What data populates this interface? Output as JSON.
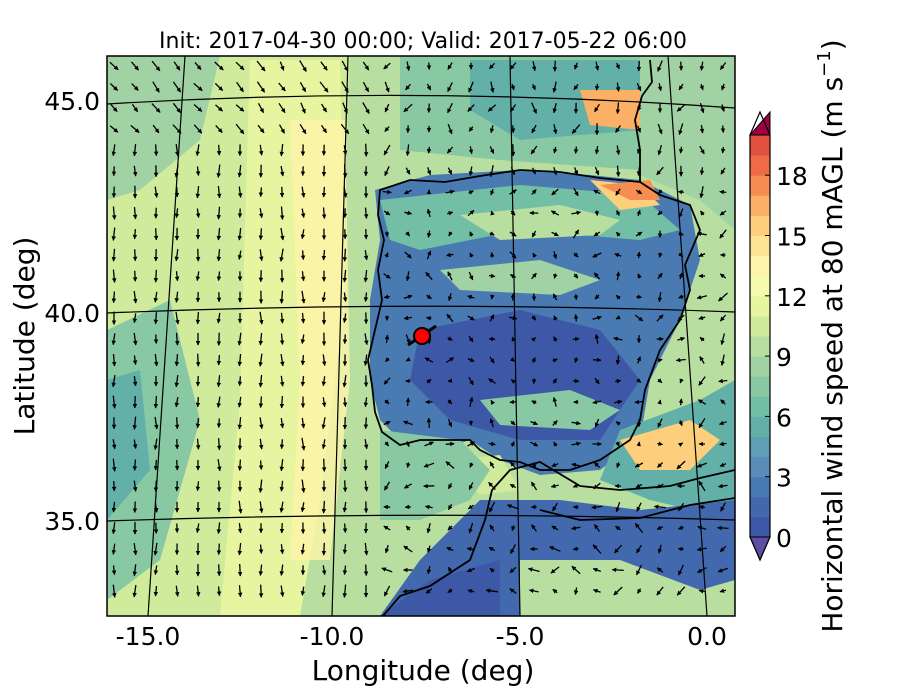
{
  "chart_data": {
    "type": "heatmap",
    "title": "Init: 2017-04-30 00:00; Valid: 2017-05-22 06:00",
    "xlabel": "Longitude (deg)",
    "ylabel": "Latitude (deg)",
    "xlim": [
      -15.8,
      0.2
    ],
    "ylim": [
      32.6,
      46.2
    ],
    "x_ticks": [
      -15.0,
      -10.0,
      -5.0,
      0.0
    ],
    "x_tick_labels": [
      "-15.0",
      "-10.0",
      "-5.0",
      "0.0"
    ],
    "y_ticks": [
      35.0,
      40.0,
      45.0
    ],
    "y_tick_labels": [
      "35.0",
      "40.0",
      "45.0"
    ],
    "grid": "lat/lon graticule",
    "field": "Horizontal wind speed at 80 mAGL",
    "colorbar": {
      "label": "Horizontal wind speed at 80 mAGL (m s^-1)",
      "label_text": "Horizontal wind speed at 80 mAGL (m s",
      "label_superscript": "−1",
      "label_close": ")",
      "min": 0,
      "max": 20,
      "levels": 20,
      "extend": "both",
      "ticks": [
        0,
        3,
        6,
        9,
        12,
        15,
        18
      ],
      "tick_labels": [
        "0",
        "3",
        "6",
        "9",
        "12",
        "15",
        "18"
      ],
      "colormap": "Spectral_r",
      "colors": [
        "#3d58a7",
        "#4269ad",
        "#4a7ab2",
        "#5a8cb8",
        "#5f9fb5",
        "#62b0a8",
        "#73bfa5",
        "#88c9a4",
        "#a0d2a3",
        "#b8dea0",
        "#d1eb9c",
        "#e8f5a0",
        "#f6faad",
        "#fef4a9",
        "#fee395",
        "#fdce7c",
        "#fcb065",
        "#f88d52",
        "#ef6b46",
        "#e0523f"
      ],
      "under_color": "#5e4fa2",
      "over_color": "#9e0142"
    },
    "marker": {
      "lon": -7.8,
      "lat": 39.4,
      "color": "#ff0000"
    },
    "wind_field_summary": "Strong northerly flow (~9-12 m/s) off western Iberia coast; weak winds (0-3 m/s) over interior Spain; locally strong winds (12-18 m/s) in Ebro valley and SE Spain; arrows show wind direction"
  }
}
